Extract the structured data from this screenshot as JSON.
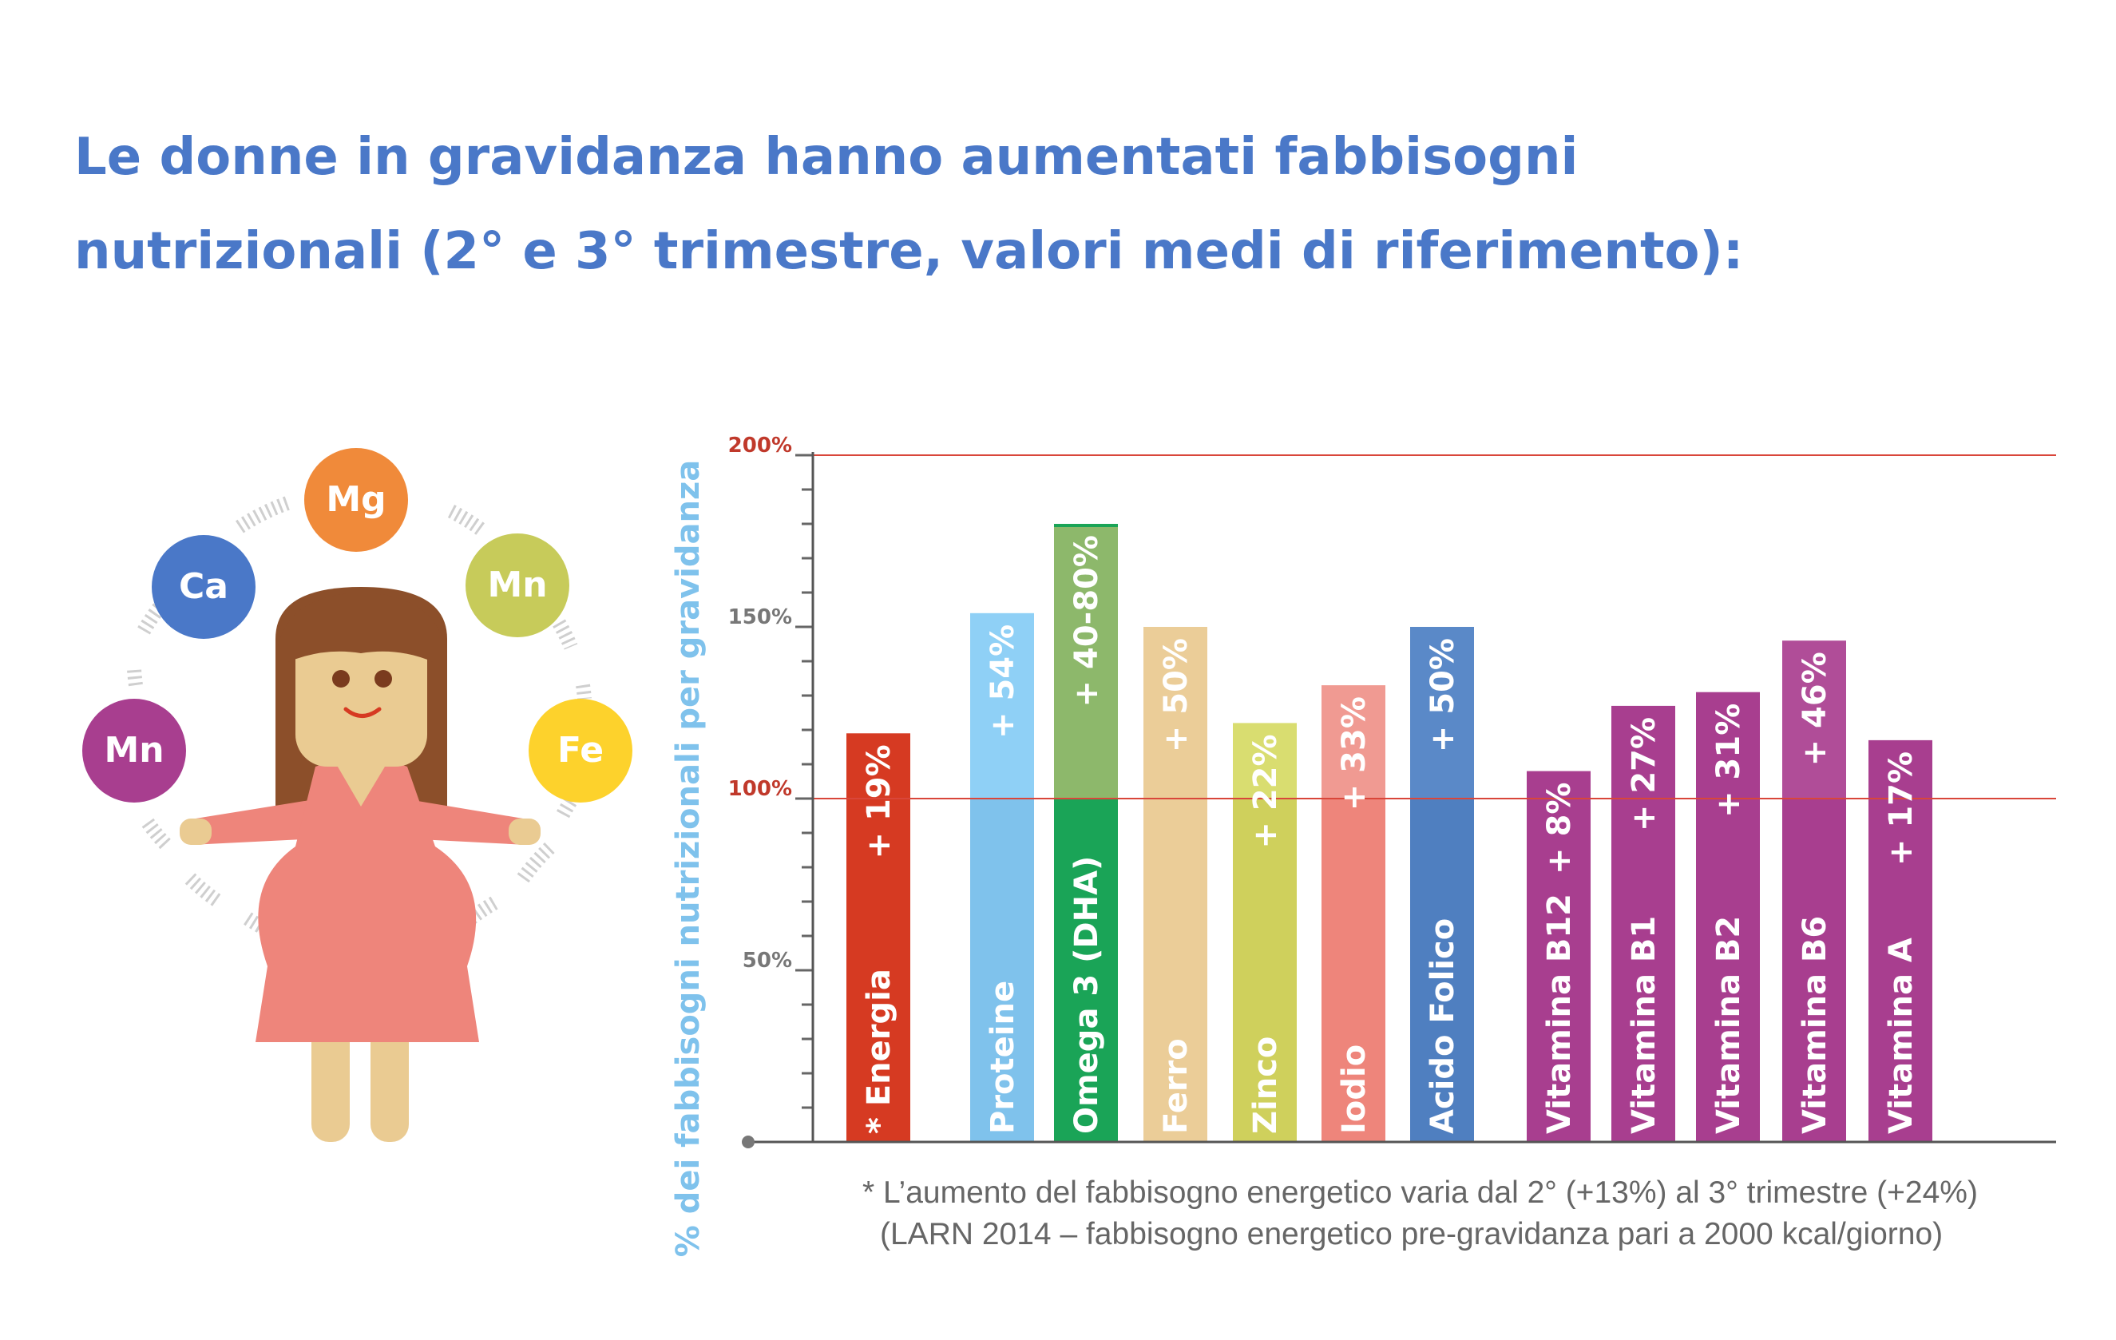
{
  "title": {
    "line1": "Le donne in gravidanza hanno aumentati fabbisogni",
    "line2": "nutrizionali (2° e 3° trimestre, valori medi di riferimento):"
  },
  "illustration": {
    "minerals": [
      "Mg",
      "Ca",
      "Mn",
      "Mn",
      "Fe"
    ]
  },
  "chart_data": {
    "type": "bar",
    "ylabel": "% dei fabbisogni nutrizionali per gravidanza",
    "ylim": [
      0,
      200
    ],
    "yticks": [
      {
        "value": 200,
        "label": "200%",
        "highlight": true
      },
      {
        "value": 150,
        "label": "150%",
        "highlight": false
      },
      {
        "value": 100,
        "label": "100%",
        "highlight": true
      },
      {
        "value": 50,
        "label": "50%",
        "highlight": false
      }
    ],
    "reference_lines": [
      100,
      200
    ],
    "categories": [
      "* Energia",
      "Proteine",
      "Omega 3 (DHA)",
      "Ferro",
      "Zinco",
      "Iodio",
      "Acido Folico",
      "Vitamina B12",
      "Vitamina B1",
      "Vitamina B2",
      "Vitamina B6",
      "Vitamina A"
    ],
    "values": [
      119,
      154,
      180,
      150,
      122,
      133,
      150,
      108,
      127,
      131,
      146,
      117
    ],
    "value_labels": [
      "+ 19%",
      "+ 54%",
      "+ 40-80%",
      "+ 50%",
      "+ 22%",
      "+ 33%",
      "+ 50%",
      "+ 8%",
      "+ 27%",
      "+ 31%",
      "+ 46%",
      "+ 17%"
    ],
    "colors": [
      "#d63a22",
      "#7fc2ec",
      "#1aa457",
      "#ebcd98",
      "#cfd05c",
      "#ee857b",
      "#4f7fc0",
      "#a83e8f",
      "#a83e8f",
      "#a83e8f",
      "#a83e8f",
      "#a83e8f"
    ],
    "upper_colors": [
      "#d63a22",
      "#8fd0f6",
      "#8db86b",
      "#ebcd98",
      "#d9dd70",
      "#f09a92",
      "#5a89c8",
      "#a83e8f",
      "#a83e8f",
      "#a83e8f",
      "#b04d98",
      "#a83e8f"
    ],
    "grid": false,
    "legend": "none"
  },
  "footnote": {
    "line1": "* L’aumento del fabbisogno energetico varia dal 2° (+13%) al 3° trimestre (+24%)",
    "line2": "(LARN 2014 – fabbisogno energetico pre-gravidanza pari a 2000 kcal/giorno)"
  },
  "colors": {
    "title": "#4a78c8",
    "ylabel": "#7fc2ec",
    "reference_line": "#d9463a",
    "axis": "#555555"
  }
}
